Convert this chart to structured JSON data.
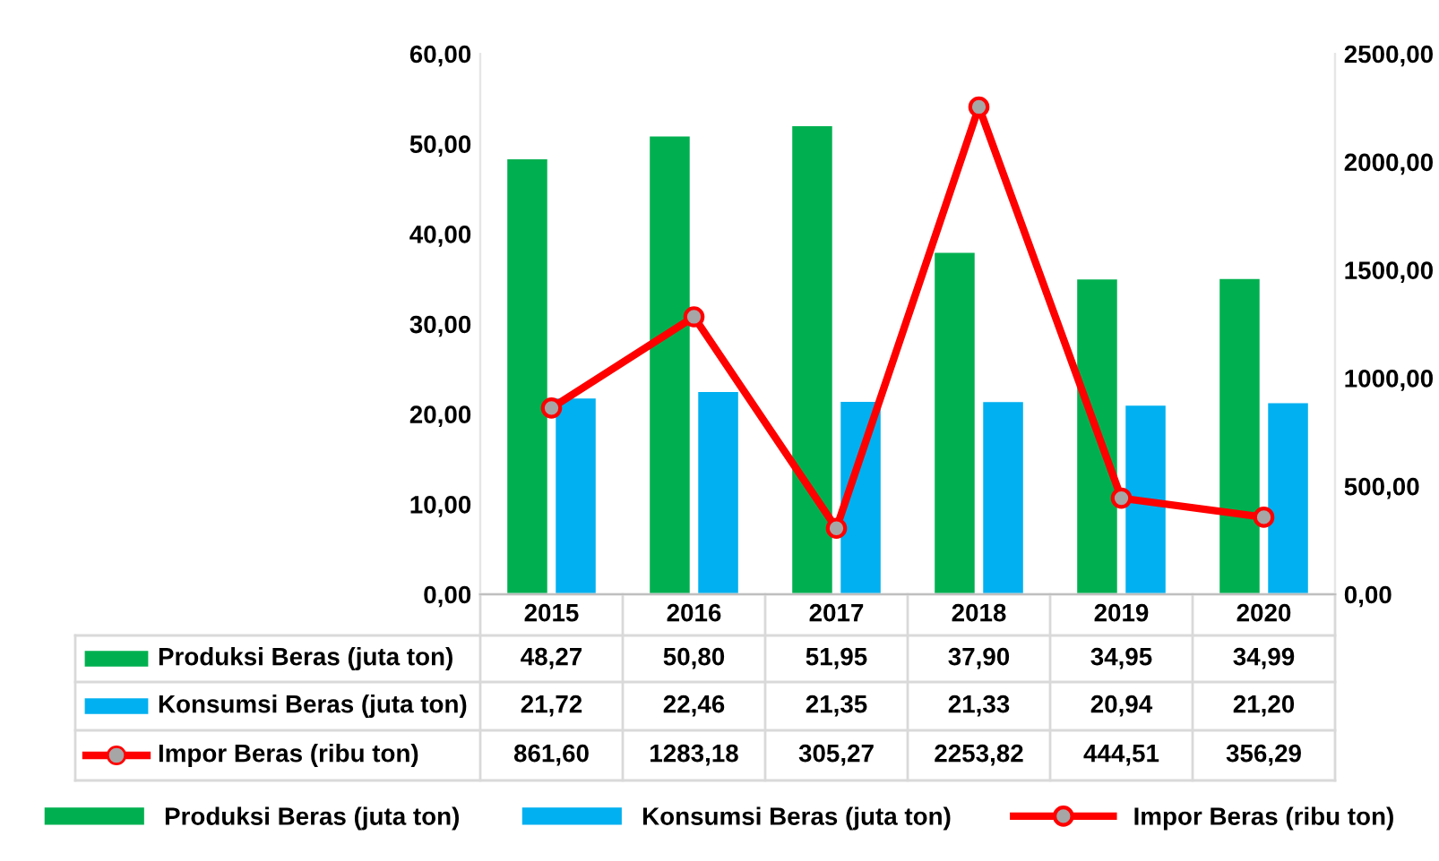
{
  "chart_data": {
    "type": "bar",
    "categories": [
      "2015",
      "2016",
      "2017",
      "2018",
      "2019",
      "2020"
    ],
    "series": [
      {
        "name": "Produksi Beras (juta ton)",
        "color": "#00b050",
        "values": [
          48.27,
          50.8,
          51.95,
          37.9,
          34.95,
          34.99
        ],
        "value_labels": [
          "48,27",
          "50,80",
          "51,95",
          "37,90",
          "34,95",
          "34,99"
        ]
      },
      {
        "name": "Konsumsi Beras (juta ton)",
        "color": "#00b0f0",
        "values": [
          21.72,
          22.46,
          21.35,
          21.33,
          20.94,
          21.2
        ],
        "value_labels": [
          "21,72",
          "22,46",
          "21,35",
          "21,33",
          "20,94",
          "21,20"
        ]
      },
      {
        "name": "Impor Beras (ribu ton)",
        "color": "#ff0000",
        "type": "line",
        "axis": "y2",
        "marker": "circle",
        "values": [
          861.6,
          1283.18,
          305.27,
          2253.82,
          444.51,
          356.29
        ],
        "value_labels": [
          "861,60",
          "1283,18",
          "305,27",
          "2253,82",
          "444,51",
          "356,29"
        ]
      }
    ],
    "ylim": [
      0,
      60
    ],
    "yticks": [
      {
        "value": 0,
        "label": "0,00"
      },
      {
        "value": 10,
        "label": "10,00"
      },
      {
        "value": 20,
        "label": "20,00"
      },
      {
        "value": 30,
        "label": "30,00"
      },
      {
        "value": 40,
        "label": "40,00"
      },
      {
        "value": 50,
        "label": "50,00"
      },
      {
        "value": 60,
        "label": "60,00"
      }
    ],
    "y2lim": [
      0,
      2500
    ],
    "y2ticks": [
      {
        "value": 0,
        "label": "0,00"
      },
      {
        "value": 500,
        "label": "500,00"
      },
      {
        "value": 1000,
        "label": "1000,00"
      },
      {
        "value": 1500,
        "label": "1500,00"
      },
      {
        "value": 2000,
        "label": "2000,00"
      },
      {
        "value": 2500,
        "label": "2500,00"
      }
    ],
    "legend": "bottom",
    "grid": false
  }
}
